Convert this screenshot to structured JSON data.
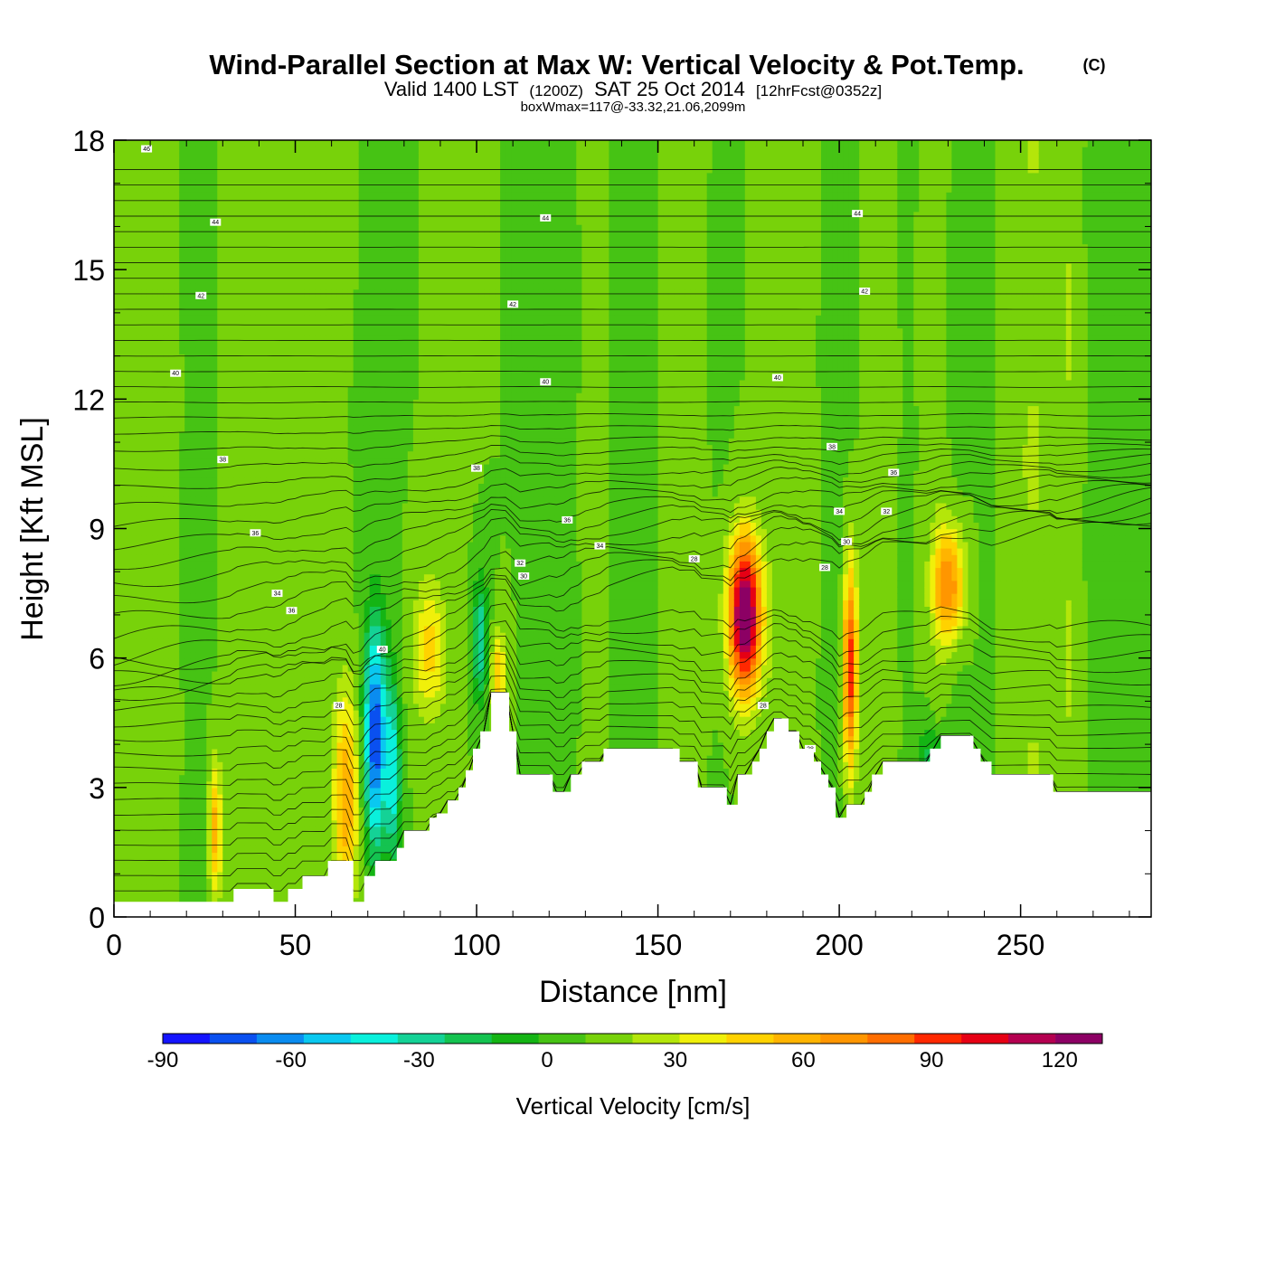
{
  "chart_data": {
    "type": "heatmap",
    "title": "Wind-Parallel Section at Max W: Vertical Velocity & Pot.Temp.",
    "title_mark": "(C)",
    "subtitle_parts": [
      "Valid 1400 LST",
      "(1200Z)",
      "SAT 25 Oct 2014",
      "[12hrFcst@0352z]"
    ],
    "annotation": "boxWmax=117@-33.32,21.06,2099m",
    "xlabel": "Distance [nm]",
    "ylabel": "Height [Kft MSL]",
    "xlim": [
      0,
      286
    ],
    "ylim": [
      0,
      18
    ],
    "x_ticks": [
      0,
      50,
      100,
      150,
      200,
      250
    ],
    "y_ticks": [
      0,
      3,
      6,
      9,
      12,
      15,
      18
    ],
    "colorbar": {
      "title": "Vertical Velocity [cm/s]",
      "min": -90,
      "max": 130,
      "step": 10,
      "tick_values": [
        -90,
        -60,
        -30,
        0,
        30,
        60,
        90,
        120
      ],
      "tick_labels": [
        "-90",
        "-60",
        "-30",
        "0",
        "30",
        "60",
        "90",
        "120"
      ],
      "colors": [
        "#1414ff",
        "#0a50f0",
        "#0a8cf0",
        "#0ac8f0",
        "#0af0dc",
        "#14d296",
        "#14c350",
        "#14b414",
        "#46c314",
        "#78d20a",
        "#b4e60a",
        "#f0f00a",
        "#ffd200",
        "#ffb400",
        "#ff9600",
        "#ff6e00",
        "#ff2800",
        "#e60014",
        "#b40050",
        "#8c0064"
      ]
    },
    "terrain": [
      [
        0,
        0.35
      ],
      [
        32,
        0.35
      ],
      [
        33,
        0.65
      ],
      [
        43,
        0.65
      ],
      [
        44,
        0.35
      ],
      [
        47,
        0.35
      ],
      [
        48,
        0.65
      ],
      [
        51,
        0.65
      ],
      [
        52,
        0.95
      ],
      [
        58,
        0.95
      ],
      [
        59,
        1.3
      ],
      [
        65,
        1.3
      ],
      [
        66,
        0.35
      ],
      [
        68,
        0.35
      ],
      [
        69,
        0.95
      ],
      [
        71,
        0.95
      ],
      [
        72,
        1.3
      ],
      [
        77,
        1.3
      ],
      [
        78,
        1.6
      ],
      [
        79,
        1.6
      ],
      [
        80,
        2.0
      ],
      [
        86,
        2.0
      ],
      [
        87,
        2.3
      ],
      [
        88,
        2.3
      ],
      [
        89,
        2.4
      ],
      [
        91,
        2.4
      ],
      [
        92,
        2.7
      ],
      [
        94,
        2.7
      ],
      [
        95,
        3.0
      ],
      [
        96,
        3.0
      ],
      [
        97,
        3.4
      ],
      [
        98,
        3.4
      ],
      [
        99,
        3.9
      ],
      [
        100,
        3.9
      ],
      [
        101,
        4.3
      ],
      [
        103,
        4.3
      ],
      [
        104,
        5.2
      ],
      [
        108,
        5.2
      ],
      [
        109,
        4.3
      ],
      [
        110,
        4.3
      ],
      [
        111,
        3.3
      ],
      [
        120,
        3.3
      ],
      [
        121,
        2.9
      ],
      [
        125,
        2.9
      ],
      [
        126,
        3.3
      ],
      [
        128,
        3.3
      ],
      [
        129,
        3.6
      ],
      [
        134,
        3.6
      ],
      [
        135,
        3.9
      ],
      [
        155,
        3.9
      ],
      [
        156,
        3.6
      ],
      [
        160,
        3.6
      ],
      [
        161,
        3.0
      ],
      [
        168,
        3.0
      ],
      [
        169,
        2.6
      ],
      [
        171,
        2.6
      ],
      [
        172,
        3.3
      ],
      [
        175,
        3.3
      ],
      [
        176,
        3.6
      ],
      [
        177,
        3.6
      ],
      [
        178,
        3.9
      ],
      [
        179,
        3.9
      ],
      [
        180,
        4.3
      ],
      [
        181,
        4.3
      ],
      [
        182,
        4.6
      ],
      [
        185,
        4.6
      ],
      [
        186,
        4.3
      ],
      [
        188,
        4.3
      ],
      [
        189,
        3.9
      ],
      [
        192,
        3.9
      ],
      [
        193,
        3.6
      ],
      [
        195,
        3.3
      ],
      [
        197,
        3.0
      ],
      [
        198,
        3.0
      ],
      [
        199,
        2.3
      ],
      [
        201,
        2.3
      ],
      [
        202,
        2.6
      ],
      [
        206,
        2.6
      ],
      [
        207,
        2.9
      ],
      [
        208,
        2.9
      ],
      [
        209,
        3.3
      ],
      [
        211,
        3.3
      ],
      [
        212,
        3.6
      ],
      [
        224,
        3.6
      ],
      [
        225,
        3.9
      ],
      [
        227,
        3.9
      ],
      [
        228,
        4.2
      ],
      [
        236,
        4.2
      ],
      [
        237,
        3.9
      ],
      [
        238,
        3.9
      ],
      [
        239,
        3.6
      ],
      [
        241,
        3.6
      ],
      [
        242,
        3.3
      ],
      [
        258,
        3.3
      ],
      [
        259,
        2.9
      ],
      [
        286,
        2.9
      ]
    ],
    "w_features": [
      {
        "x": 28,
        "z": 2.0,
        "rx": 1.8,
        "rz": 1.6,
        "w": 45
      },
      {
        "x": 64,
        "z": 2.8,
        "rx": 3.5,
        "rz": 2.4,
        "w": 50
      },
      {
        "x": 72,
        "z": 4.2,
        "rx": 3.0,
        "rz": 2.6,
        "w": -80
      },
      {
        "x": 77,
        "z": 3.3,
        "rx": 2.0,
        "rz": 2.0,
        "w": -45
      },
      {
        "x": 87,
        "z": 6.2,
        "rx": 4.5,
        "rz": 1.6,
        "w": 35
      },
      {
        "x": 101,
        "z": 6.4,
        "rx": 2.2,
        "rz": 1.4,
        "w": -40
      },
      {
        "x": 106,
        "z": 5.6,
        "rx": 2.0,
        "rz": 1.0,
        "w": 40
      },
      {
        "x": 174,
        "z": 7.0,
        "rx": 4.5,
        "rz": 1.8,
        "w": 117
      },
      {
        "x": 203,
        "z": 5.8,
        "rx": 2.0,
        "rz": 2.4,
        "w": 80
      },
      {
        "x": 230,
        "z": 7.7,
        "rx": 4.5,
        "rz": 1.3,
        "w": 60
      },
      {
        "x": 226,
        "z": 3.8,
        "rx": 4.5,
        "rz": 0.7,
        "w": -25
      }
    ],
    "contour_labels": [
      {
        "x": 9,
        "z": 17.8,
        "text": "46"
      },
      {
        "x": 28,
        "z": 16.1,
        "text": "44"
      },
      {
        "x": 119,
        "z": 16.2,
        "text": "44"
      },
      {
        "x": 205,
        "z": 16.3,
        "text": "44"
      },
      {
        "x": 24,
        "z": 14.4,
        "text": "42"
      },
      {
        "x": 110,
        "z": 14.2,
        "text": "42"
      },
      {
        "x": 207,
        "z": 14.5,
        "text": "42"
      },
      {
        "x": 17,
        "z": 12.6,
        "text": "40"
      },
      {
        "x": 119,
        "z": 12.4,
        "text": "40"
      },
      {
        "x": 183,
        "z": 12.5,
        "text": "40"
      },
      {
        "x": 30,
        "z": 10.6,
        "text": "38"
      },
      {
        "x": 100,
        "z": 10.4,
        "text": "38"
      },
      {
        "x": 198,
        "z": 10.9,
        "text": "38"
      },
      {
        "x": 215,
        "z": 10.3,
        "text": "36"
      },
      {
        "x": 39,
        "z": 8.9,
        "text": "36"
      },
      {
        "x": 125,
        "z": 9.2,
        "text": "36"
      },
      {
        "x": 200,
        "z": 9.4,
        "text": "34"
      },
      {
        "x": 213,
        "z": 9.4,
        "text": "32"
      },
      {
        "x": 134,
        "z": 8.6,
        "text": "34"
      },
      {
        "x": 45,
        "z": 7.5,
        "text": "34"
      },
      {
        "x": 112,
        "z": 8.2,
        "text": "32"
      },
      {
        "x": 113,
        "z": 7.9,
        "text": "30"
      },
      {
        "x": 160,
        "z": 8.3,
        "text": "28"
      },
      {
        "x": 202,
        "z": 8.7,
        "text": "30"
      },
      {
        "x": 196,
        "z": 8.1,
        "text": "28"
      },
      {
        "x": 49,
        "z": 7.1,
        "text": "36"
      },
      {
        "x": 74,
        "z": 6.2,
        "text": "40"
      },
      {
        "x": 62,
        "z": 4.9,
        "text": "28"
      },
      {
        "x": 179,
        "z": 4.9,
        "text": "28"
      },
      {
        "x": 192,
        "z": 3.9,
        "text": "28"
      }
    ]
  }
}
